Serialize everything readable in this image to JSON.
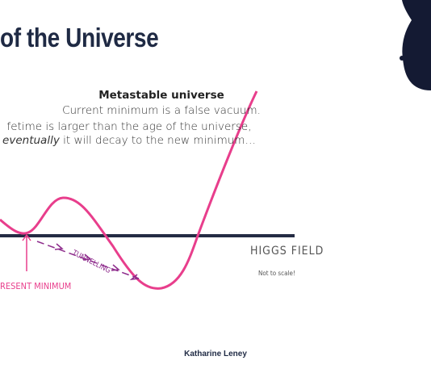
{
  "slide": {
    "title": "of the Universe",
    "box": {
      "heading": "Metastable universe",
      "lines": [
        "Current minimum is a false vacuum.",
        "fetime is larger than the age of the universe,"
      ],
      "last_line": {
        "italic": "eventually",
        "rest": " it will decay to the new minimum…"
      }
    },
    "diagram": {
      "axis_label": "HIGGS FIELD",
      "note": "Not to scale!",
      "tunnelling": "TUNNELLING",
      "minimum_label": "RESENT MINIMUM"
    },
    "footer": "Katharine Leney"
  }
}
